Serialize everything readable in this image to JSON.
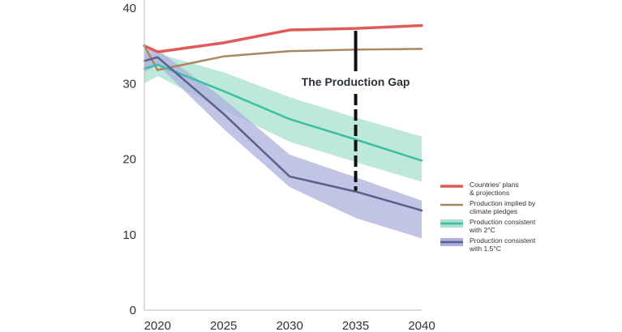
{
  "chart_data": {
    "type": "line",
    "title": "",
    "xlabel": "",
    "ylabel": "",
    "xlim": [
      2019,
      2040
    ],
    "ylim": [
      0,
      40
    ],
    "x_ticks": [
      2020,
      2025,
      2030,
      2035,
      2040
    ],
    "y_ticks": [
      0,
      10,
      20,
      30,
      40
    ],
    "grid": false,
    "legend_position": "right",
    "series": [
      {
        "name": "Countries' plans & projections",
        "legend_lines": [
          "Countries' plans",
          "& projections"
        ],
        "color": "#e05a5a",
        "x": [
          2019,
          2020,
          2025,
          2030,
          2035,
          2040
        ],
        "y": [
          35.0,
          34.2,
          35.4,
          37.1,
          37.3,
          37.7
        ]
      },
      {
        "name": "Production implied by climate pledges",
        "legend_lines": [
          "Production implied by",
          "climate pledges"
        ],
        "color": "#a8885e",
        "x": [
          2019,
          2020,
          2025,
          2030,
          2035,
          2040
        ],
        "y": [
          35.0,
          31.8,
          33.6,
          34.3,
          34.5,
          34.6
        ]
      },
      {
        "name": "Production consistent with 2°C",
        "legend_lines": [
          "Production consistent",
          "with 2°C"
        ],
        "color": "#3dbfa4",
        "band_color": "#a8e0cc",
        "x": [
          2019,
          2020,
          2025,
          2030,
          2035,
          2040
        ],
        "y": [
          32.0,
          32.5,
          29.0,
          25.3,
          22.6,
          19.8
        ],
        "band_upper": [
          34.0,
          34.0,
          31.5,
          28.2,
          25.5,
          23.0
        ],
        "band_lower": [
          30.0,
          31.0,
          26.5,
          22.3,
          19.6,
          17.0
        ]
      },
      {
        "name": "Production consistent with 1.5°C",
        "legend_lines": [
          "Production consistent",
          "with 1.5°C"
        ],
        "color": "#5b5f8c",
        "band_color": "#aeb0dd",
        "x": [
          2019,
          2020,
          2025,
          2030,
          2035,
          2040
        ],
        "y": [
          33.0,
          33.5,
          26.0,
          17.7,
          15.7,
          13.2
        ],
        "band_upper": [
          34.5,
          34.5,
          28.0,
          20.6,
          17.6,
          14.5
        ],
        "band_lower": [
          31.5,
          32.5,
          24.0,
          16.3,
          12.2,
          9.5
        ]
      }
    ],
    "annotations": [
      {
        "text": "The Production Gap",
        "x": 2035,
        "y_from": 15.8,
        "y_to": 37.0
      }
    ]
  }
}
